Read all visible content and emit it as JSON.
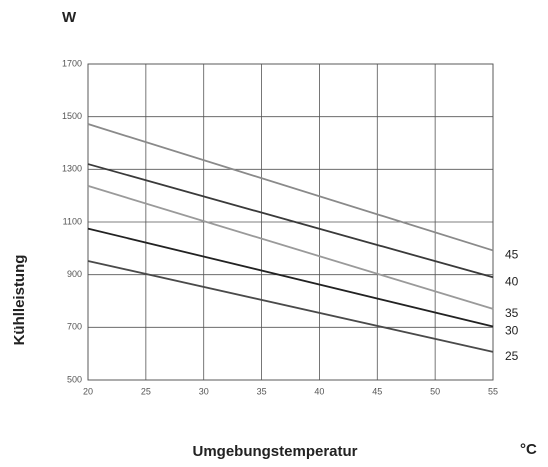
{
  "chart_data": {
    "type": "line",
    "y_unit": "W",
    "y_label": "Kühlleistung",
    "x_label": "Umgebungstemperatur",
    "x_unit": "°C",
    "x": [
      20,
      55
    ],
    "series": [
      {
        "name": "45",
        "color": "#8a8a8a",
        "values": [
          1472,
          992
        ]
      },
      {
        "name": "40",
        "color": "#3a3a3a",
        "values": [
          1320,
          890
        ]
      },
      {
        "name": "35",
        "color": "#9a9a9a",
        "values": [
          1237,
          770
        ]
      },
      {
        "name": "30",
        "color": "#222222",
        "values": [
          1075,
          703
        ]
      },
      {
        "name": "25",
        "color": "#4a4a4a",
        "values": [
          952,
          607
        ]
      }
    ],
    "xlim": [
      20,
      55
    ],
    "xticks": [
      20,
      25,
      30,
      35,
      40,
      45,
      50,
      55
    ],
    "ylim": [
      500,
      1700
    ],
    "yticks": [
      500,
      700,
      900,
      1100,
      1300,
      1500,
      1700
    ],
    "grid": true
  }
}
